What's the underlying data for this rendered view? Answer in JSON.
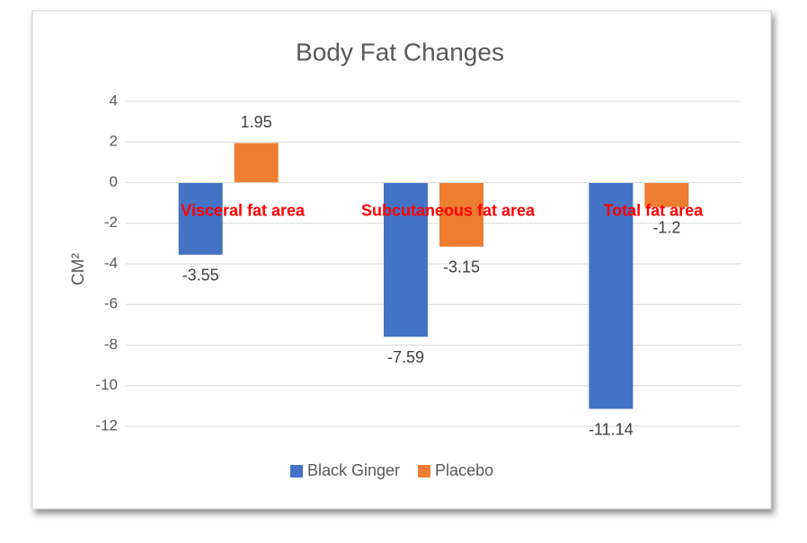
{
  "chart_data": {
    "type": "bar",
    "title": "Body Fat Changes",
    "y_label": "CM²",
    "categories": [
      "Visceral fat area",
      "Subcutaneous fat area",
      "Total fat area"
    ],
    "series": [
      {
        "name": "Black Ginger",
        "color": "#4472c4",
        "values": [
          -3.55,
          -7.59,
          -11.14
        ]
      },
      {
        "name": "Placebo",
        "color": "#ed7d31",
        "values": [
          1.95,
          -3.15,
          -1.2
        ]
      }
    ],
    "ylim": [
      -12,
      4
    ],
    "yticks": [
      -12,
      -10,
      -8,
      -6,
      -4,
      -2,
      0,
      2,
      4
    ],
    "grid": true,
    "category_label_color": "#ff0000",
    "legend": "bottom"
  }
}
